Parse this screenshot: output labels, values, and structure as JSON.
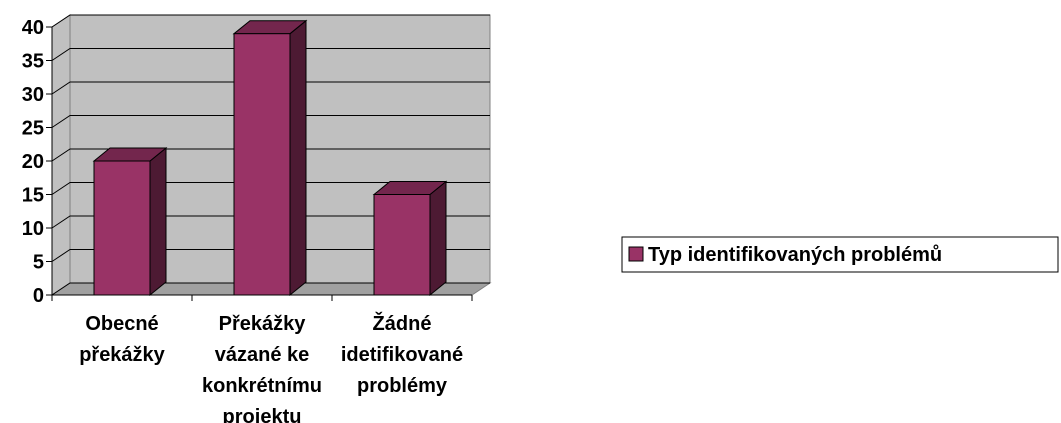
{
  "chart_data": {
    "type": "bar3d",
    "categories": [
      "Obecné překážky",
      "Překážky vázané ke konkrétnímu projektu",
      "Žádné idetifikované problémy"
    ],
    "series": [
      {
        "name": "Typ identifikovaných problémů",
        "color": "#993366",
        "values": [
          20,
          39,
          15
        ]
      }
    ],
    "ylim": [
      0,
      40
    ],
    "yticks": [
      0,
      5,
      10,
      15,
      20,
      25,
      30,
      35,
      40
    ],
    "grid": true,
    "legend": "right"
  }
}
